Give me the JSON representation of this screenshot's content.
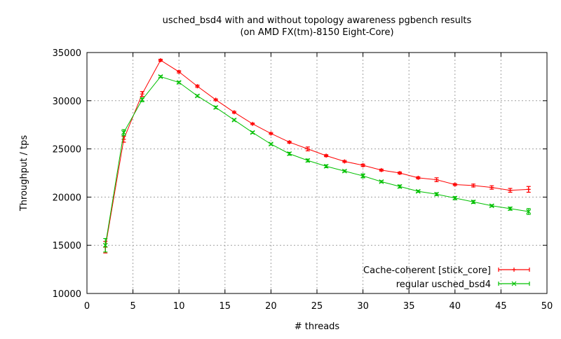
{
  "chart_data": {
    "type": "line",
    "title": "usched_bsd4 with and without topology awareness pgbench results",
    "subtitle": "(on AMD FX(tm)-8150 Eight-Core)",
    "xlabel": "# threads",
    "ylabel": "Throughput / tps",
    "xlim": [
      0,
      50
    ],
    "ylim": [
      10000,
      35000
    ],
    "xticks": [
      0,
      5,
      10,
      15,
      20,
      25,
      30,
      35,
      40,
      45,
      50
    ],
    "yticks": [
      10000,
      15000,
      20000,
      25000,
      30000,
      35000
    ],
    "grid": true,
    "legend_position": "bottom-right",
    "x": [
      2,
      4,
      6,
      8,
      10,
      12,
      14,
      16,
      18,
      20,
      22,
      24,
      26,
      28,
      30,
      32,
      34,
      36,
      38,
      40,
      42,
      44,
      46,
      48
    ],
    "series": [
      {
        "name": "Cache-coherent [stick_core]",
        "color": "#ff0000",
        "marker": "plus",
        "values": [
          14800,
          26000,
          30700,
          34200,
          33000,
          31500,
          30100,
          28800,
          27600,
          26600,
          25700,
          25000,
          24300,
          23700,
          23300,
          22800,
          22500,
          22000,
          21800,
          21300,
          21200,
          21000,
          20700,
          20800
        ],
        "errors": [
          600,
          300,
          250,
          100,
          120,
          120,
          100,
          100,
          80,
          100,
          100,
          200,
          100,
          100,
          120,
          100,
          100,
          100,
          200,
          100,
          150,
          180,
          200,
          300
        ]
      },
      {
        "name": "regular usched_bsd4",
        "color": "#00c000",
        "marker": "cross",
        "values": [
          15000,
          26700,
          30100,
          32500,
          31900,
          30500,
          29300,
          28000,
          26700,
          25500,
          24500,
          23800,
          23200,
          22700,
          22200,
          21600,
          21100,
          20600,
          20300,
          19900,
          19500,
          19100,
          18800,
          18500
        ],
        "errors": [
          700,
          300,
          200,
          100,
          100,
          100,
          120,
          100,
          100,
          100,
          150,
          150,
          150,
          100,
          200,
          100,
          150,
          100,
          150,
          150,
          150,
          100,
          150,
          300
        ]
      }
    ]
  }
}
